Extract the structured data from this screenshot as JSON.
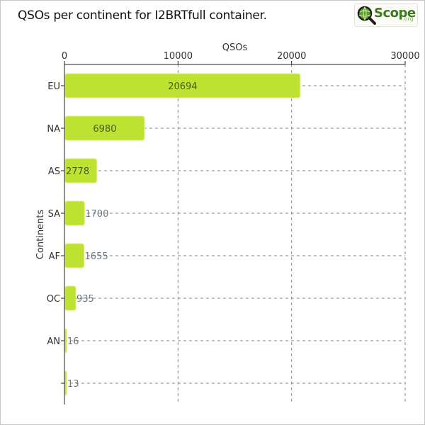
{
  "title": "QSOs per continent for I2BRTfull container.",
  "logo": {
    "name": "Scope",
    "suffix": ".org",
    "brand_color": "#3d7a1e",
    "icon": "magnifier-globe-icon"
  },
  "chart_data": {
    "type": "bar",
    "orientation": "horizontal",
    "title": "QSOs per continent for I2BRTfull container.",
    "xlabel": "QSOs",
    "ylabel": "Continents",
    "xlim": [
      0,
      30000
    ],
    "xticks": [
      0,
      10000,
      20000,
      30000
    ],
    "x_axis_position": "top",
    "grid": true,
    "categories": [
      "EU",
      "NA",
      "AS",
      "SA",
      "AF",
      "OC",
      "AN",
      ""
    ],
    "values": [
      20694,
      6980,
      2778,
      1700,
      1655,
      935,
      16,
      13
    ],
    "bar_color": "#bde330",
    "label_color_inside": "#4a5a20",
    "label_color_outside": "#6a7880"
  }
}
